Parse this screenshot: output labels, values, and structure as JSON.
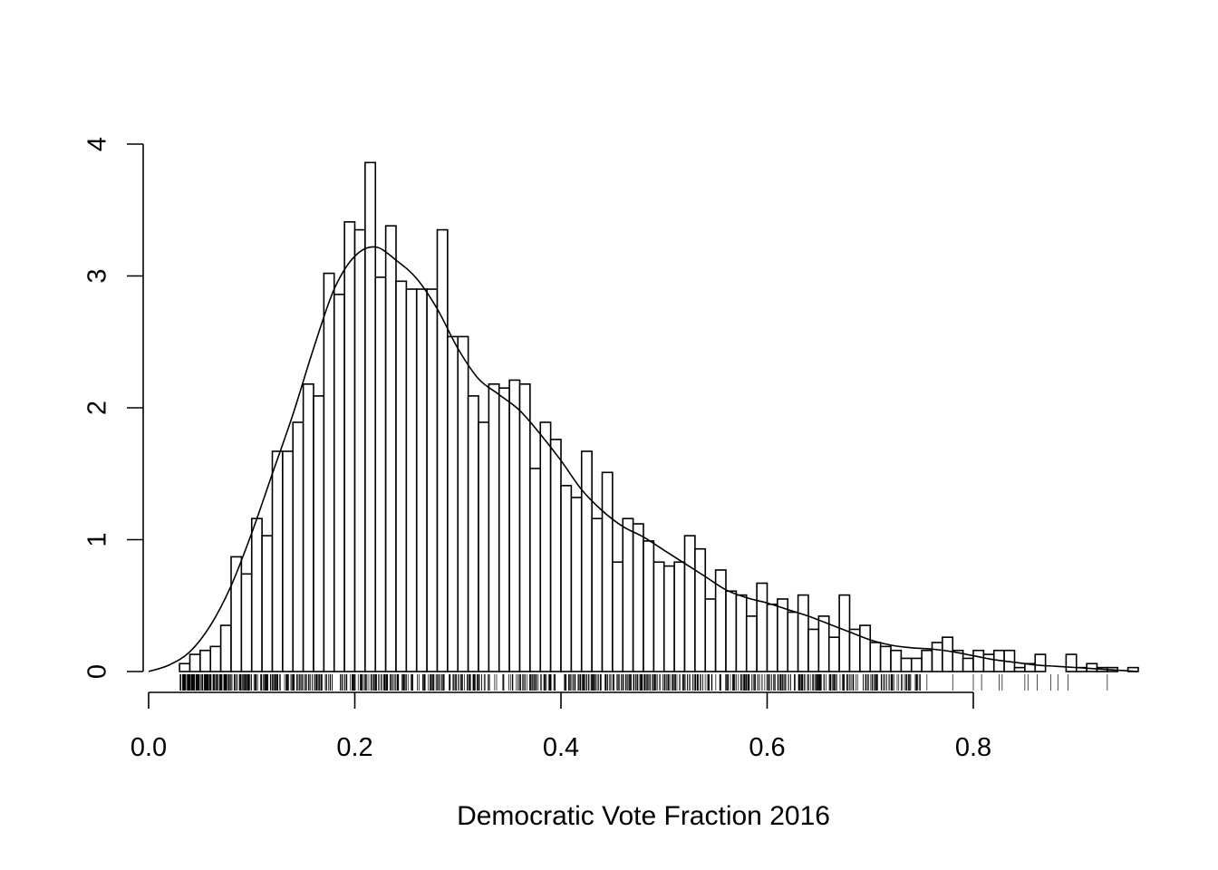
{
  "chart_data": {
    "type": "histogram",
    "xlabel": "Democratic Vote Fraction 2016",
    "ylabel": "",
    "title": "",
    "xlim": [
      0.0,
      0.96
    ],
    "ylim": [
      0,
      4
    ],
    "x_ticks": [
      "0.0",
      "0.2",
      "0.4",
      "0.6",
      "0.8"
    ],
    "y_ticks": [
      "0",
      "1",
      "2",
      "3",
      "4"
    ],
    "bin_width": 0.01,
    "bin_start": 0.03,
    "bar_heights": [
      0.06,
      0.13,
      0.16,
      0.19,
      0.35,
      0.87,
      0.74,
      1.16,
      1.03,
      1.67,
      1.67,
      1.89,
      2.18,
      2.09,
      3.02,
      2.86,
      3.41,
      3.35,
      3.86,
      2.99,
      3.38,
      2.96,
      2.9,
      2.9,
      2.9,
      3.35,
      2.54,
      2.54,
      2.09,
      1.89,
      2.18,
      2.15,
      2.21,
      2.18,
      1.54,
      1.89,
      1.76,
      1.41,
      1.32,
      1.67,
      1.16,
      1.51,
      0.83,
      1.16,
      1.12,
      0.99,
      0.83,
      0.8,
      0.83,
      1.03,
      0.93,
      0.55,
      0.77,
      0.61,
      0.58,
      0.42,
      0.67,
      0.51,
      0.55,
      0.45,
      0.58,
      0.32,
      0.42,
      0.26,
      0.58,
      0.32,
      0.35,
      0.22,
      0.19,
      0.16,
      0.1,
      0.1,
      0.16,
      0.22,
      0.26,
      0.16,
      0.1,
      0.16,
      0.13,
      0.16,
      0.16,
      0.03,
      0.06,
      0.13,
      0.0,
      0.0,
      0.13,
      0.03,
      0.06,
      0.03,
      0.03,
      0.0,
      0.03
    ],
    "density_curve": {
      "x": [
        0.0,
        0.02,
        0.04,
        0.06,
        0.08,
        0.1,
        0.12,
        0.14,
        0.16,
        0.18,
        0.2,
        0.22,
        0.24,
        0.26,
        0.28,
        0.3,
        0.32,
        0.34,
        0.36,
        0.38,
        0.4,
        0.42,
        0.44,
        0.46,
        0.48,
        0.5,
        0.52,
        0.54,
        0.56,
        0.58,
        0.6,
        0.62,
        0.64,
        0.66,
        0.68,
        0.7,
        0.72,
        0.74,
        0.76,
        0.78,
        0.8,
        0.82,
        0.84,
        0.86,
        0.88,
        0.9,
        0.92,
        0.94,
        0.96
      ],
      "y": [
        0.0,
        0.05,
        0.15,
        0.35,
        0.65,
        1.05,
        1.5,
        1.95,
        2.45,
        2.9,
        3.15,
        3.22,
        3.12,
        2.98,
        2.75,
        2.45,
        2.22,
        2.1,
        1.98,
        1.8,
        1.6,
        1.38,
        1.22,
        1.1,
        1.02,
        0.92,
        0.82,
        0.72,
        0.62,
        0.56,
        0.52,
        0.47,
        0.42,
        0.36,
        0.3,
        0.24,
        0.2,
        0.18,
        0.17,
        0.15,
        0.12,
        0.09,
        0.07,
        0.05,
        0.04,
        0.03,
        0.02,
        0.01,
        0.0
      ]
    },
    "rug": {
      "min": 0.03,
      "max": 0.93,
      "sparse_values": [
        0.755,
        0.78,
        0.8,
        0.808,
        0.825,
        0.828,
        0.85,
        0.853,
        0.862,
        0.875,
        0.882,
        0.892,
        0.93
      ]
    }
  }
}
